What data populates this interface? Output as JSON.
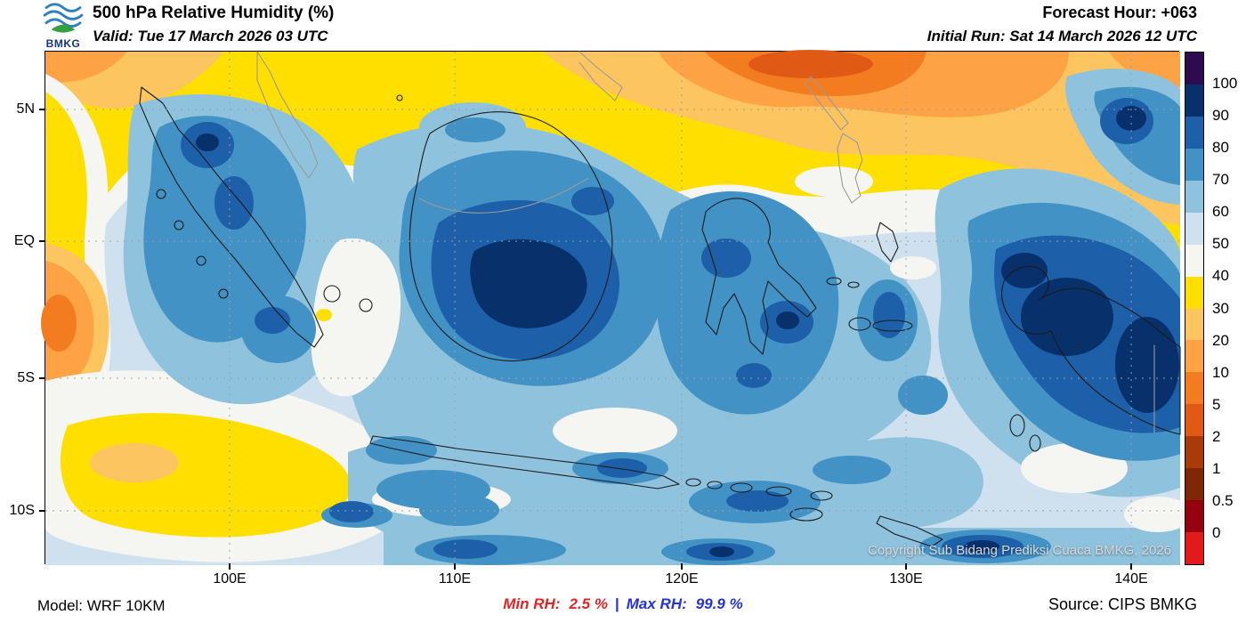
{
  "header": {
    "logo_text": "BMKG",
    "title": "500 hPa Relative Humidity (%)",
    "valid_line": "Valid: Tue 17 March 2026 03 UTC",
    "forecast_hour": "Forecast Hour: +063",
    "initial_run": "Initial Run: Sat 14 March 2026 12 UTC"
  },
  "map": {
    "lat_labels": [
      "5N",
      "EQ",
      "5S",
      "10S"
    ],
    "lon_labels": [
      "100E",
      "110E",
      "120E",
      "130E",
      "140E"
    ],
    "copyright": "Copyright Sub Bidang Prediksi Cuaca BMKG, 2026"
  },
  "colorbar": {
    "labels": [
      "100",
      "90",
      "80",
      "70",
      "60",
      "50",
      "40",
      "30",
      "20",
      "10",
      "5",
      "2",
      "1",
      "0.5",
      "0"
    ],
    "colors": [
      "#2e0a4e",
      "#08306b",
      "#1d5fa8",
      "#4292c6",
      "#8fc2dd",
      "#cfe0ef",
      "#f5f6f2",
      "#ffdf00",
      "#fdc55f",
      "#fda245",
      "#f47c20",
      "#e05a15",
      "#a83b08",
      "#7f2704",
      "#94000d",
      "#e31a1c"
    ]
  },
  "footer": {
    "model": "Model: WRF 10KM",
    "min_label": "Min RH:",
    "min_value": "2.5 %",
    "separator": "|",
    "max_label": "Max RH:",
    "max_value": "99.9 %",
    "source": "Source: CIPS BMKG"
  },
  "colors": {
    "min_rh_text": "#e02424",
    "max_rh_text": "#2433d0",
    "copyright_text": "#d9d9d9",
    "logo_blue": "#2f7fc1",
    "logo_green": "#35a03f"
  },
  "chart_data": {
    "type": "heatmap",
    "title": "500 hPa Relative Humidity (%)",
    "units": "%",
    "valid_time": "Tue 17 March 2026 03 UTC",
    "initial_run": "Sat 14 March 2026 12 UTC",
    "forecast_hour": "+063",
    "model": "WRF 10KM",
    "source": "CIPS BMKG",
    "x_ticks": [
      "100E",
      "110E",
      "120E",
      "130E",
      "140E"
    ],
    "y_ticks": [
      "5N",
      "EQ",
      "5S",
      "10S"
    ],
    "lon_range": [
      92,
      142
    ],
    "lat_range": [
      -12.5,
      7.5
    ],
    "scale_levels": [
      100,
      90,
      80,
      70,
      60,
      50,
      40,
      30,
      20,
      10,
      5,
      2,
      1,
      0.5,
      0
    ],
    "min_rh": 2.5,
    "max_rh": 99.9,
    "legend_position": "right",
    "grid": "dotted",
    "summary": "High RH (80-100%) cores over central Kalimantan, Papua and the far northeast; broad 60-80% over most of Indonesia; dry air (RH < 40%, yellow-orange) across the northern edge (South China Sea / Philippine Sea), along the western edge west of Sumatra and in the southwest Indian Ocean."
  }
}
